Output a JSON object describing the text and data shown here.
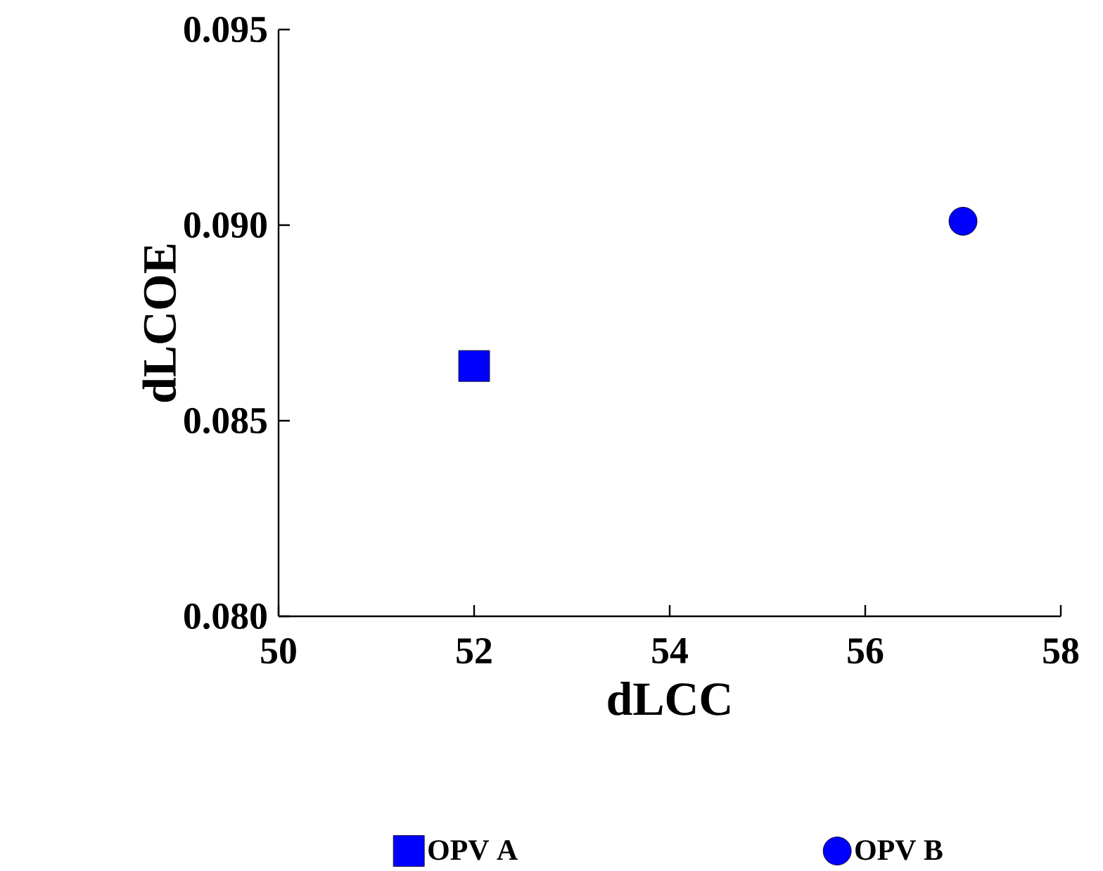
{
  "chart_data": {
    "type": "scatter",
    "xlabel": "dLCC",
    "ylabel": "dLCOE",
    "xlim": [
      50,
      58
    ],
    "xticks": [
      50,
      52,
      54,
      56,
      58
    ],
    "ylim": [
      0.08,
      0.095
    ],
    "yticks": [
      {
        "value": 0.08,
        "label": "0.080"
      },
      {
        "value": 0.085,
        "label": "0.085"
      },
      {
        "value": 0.09,
        "label": "0.090"
      },
      {
        "value": 0.095,
        "label": "0.095"
      }
    ],
    "legend": "bottom",
    "grid": false,
    "series": [
      {
        "name": "OPV A",
        "color": "#0000ff",
        "marker": "square",
        "x": [
          52
        ],
        "values": [
          0.0864
        ]
      },
      {
        "name": "OPV B",
        "color": "#0000ff",
        "marker": "circle",
        "x": [
          57
        ],
        "values": [
          0.0901
        ]
      }
    ]
  }
}
